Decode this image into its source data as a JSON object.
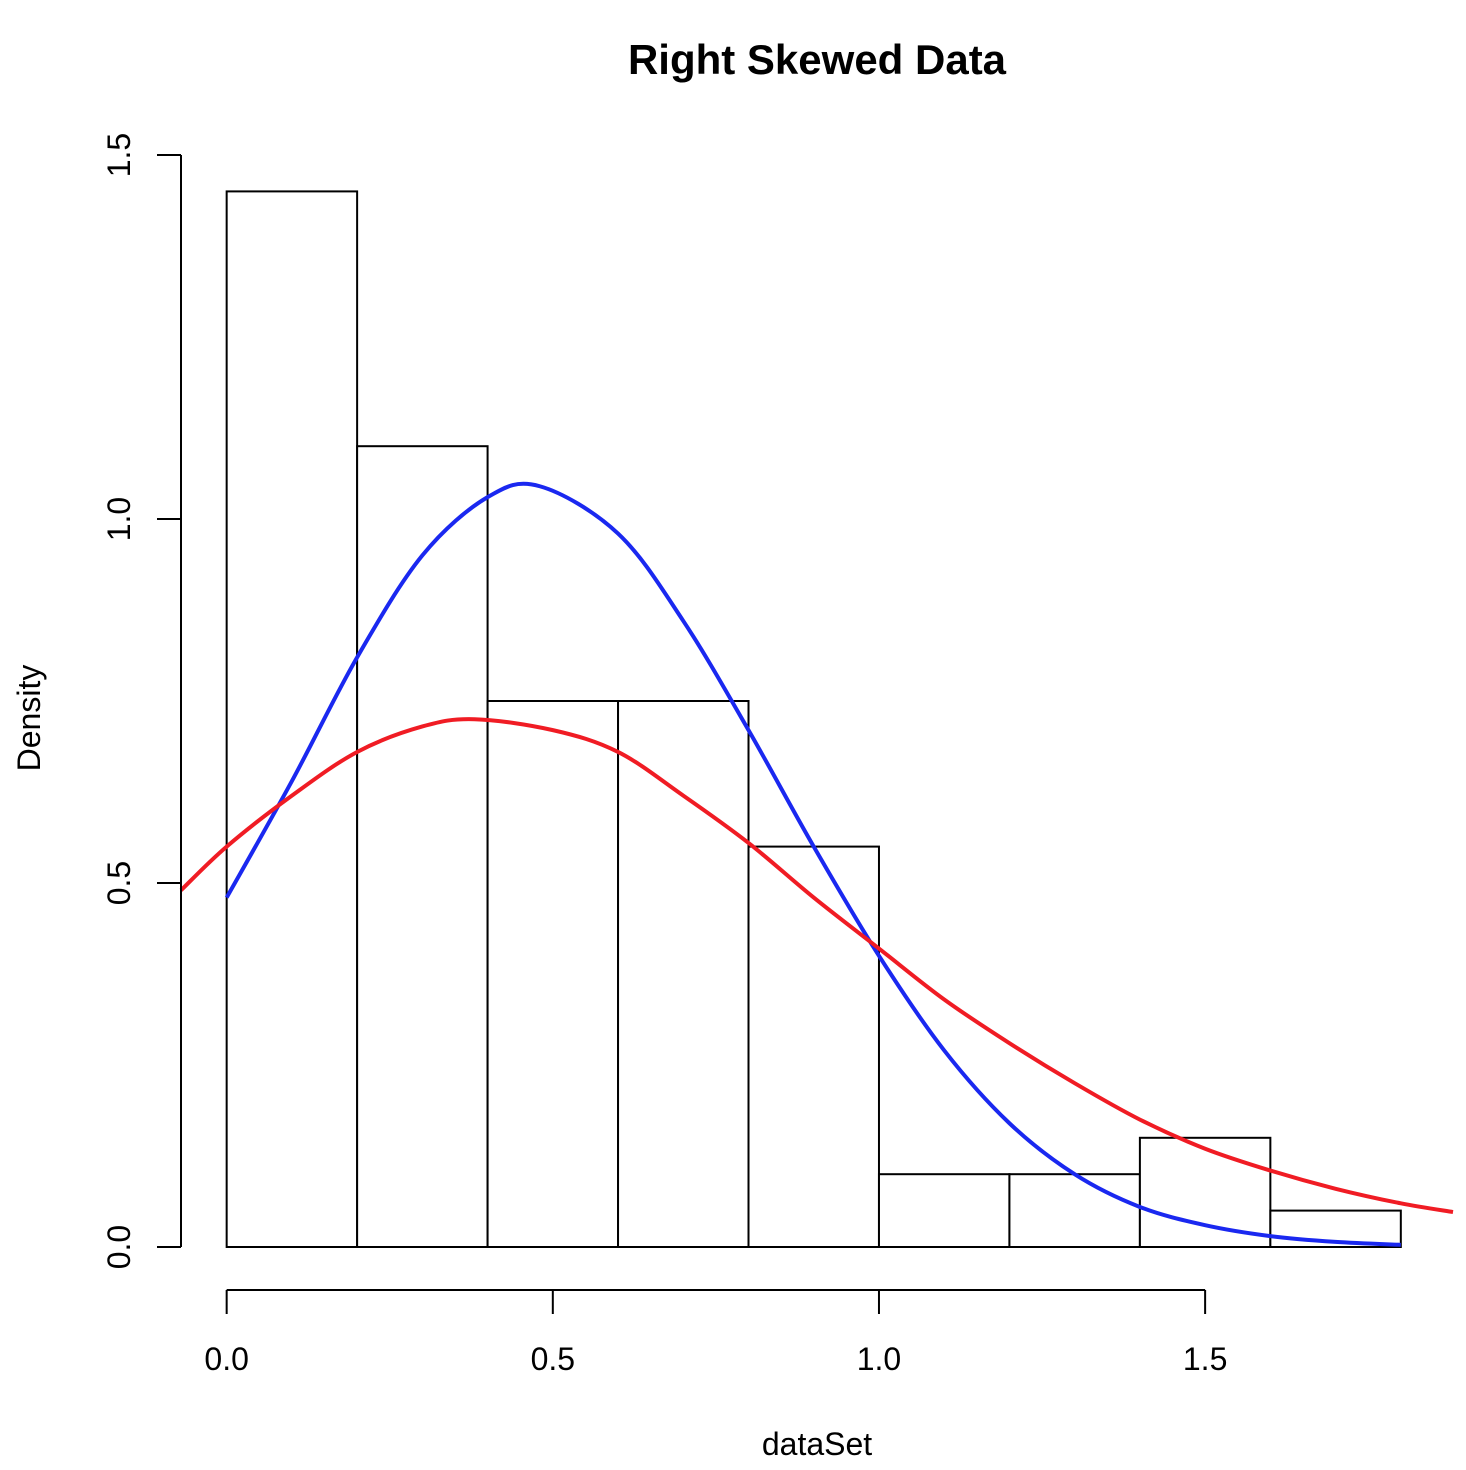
{
  "chart_data": {
    "type": "bar",
    "title": "Right Skewed Data",
    "xlabel": "dataSet",
    "ylabel": "Density",
    "bin_edges": [
      0.0,
      0.2,
      0.4,
      0.6,
      0.8,
      1.0,
      1.2,
      1.4,
      1.6,
      1.8
    ],
    "values": [
      1.45,
      1.1,
      0.75,
      0.75,
      0.55,
      0.1,
      0.1,
      0.15,
      0.05
    ],
    "xlim": [
      -0.07,
      1.88
    ],
    "ylim": [
      0,
      1.5
    ],
    "x_ticks": [
      "0.0",
      "0.5",
      "1.0",
      "1.5"
    ],
    "y_ticks": [
      "0.0",
      "0.5",
      "1.0",
      "1.5"
    ],
    "grid": false,
    "series": [
      {
        "type": "line",
        "color": "#1a28f0",
        "x": [
          0.0,
          0.1,
          0.2,
          0.3,
          0.4,
          0.48,
          0.6,
          0.7,
          0.8,
          0.9,
          1.0,
          1.1,
          1.2,
          1.3,
          1.4,
          1.5,
          1.6,
          1.7,
          1.8
        ],
        "y": [
          0.48,
          0.64,
          0.81,
          0.95,
          1.03,
          1.045,
          0.98,
          0.86,
          0.71,
          0.55,
          0.4,
          0.27,
          0.17,
          0.1,
          0.055,
          0.03,
          0.015,
          0.007,
          0.003
        ]
      },
      {
        "type": "line",
        "color": "#f01c24",
        "x": [
          -0.07,
          0.0,
          0.1,
          0.2,
          0.3,
          0.38,
          0.5,
          0.6,
          0.7,
          0.8,
          0.9,
          1.0,
          1.1,
          1.2,
          1.3,
          1.4,
          1.5,
          1.6,
          1.7,
          1.8,
          1.88
        ],
        "y": [
          0.49,
          0.55,
          0.62,
          0.68,
          0.715,
          0.725,
          0.71,
          0.68,
          0.62,
          0.555,
          0.48,
          0.41,
          0.34,
          0.28,
          0.225,
          0.175,
          0.135,
          0.105,
          0.08,
          0.06,
          0.048
        ]
      }
    ]
  }
}
